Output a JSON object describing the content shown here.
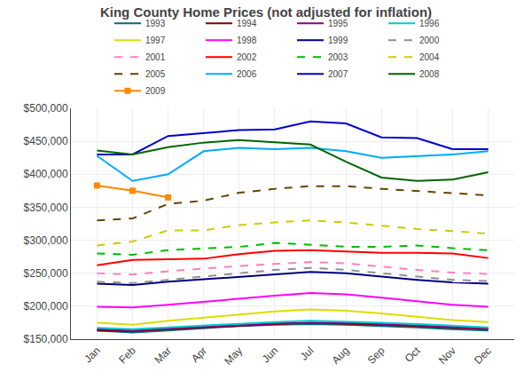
{
  "chart_data": {
    "type": "line",
    "title": "King County Home Prices (not adjusted for inflation)",
    "categories": [
      "Jan",
      "Feb",
      "Mar",
      "Apr",
      "May",
      "Jun",
      "Jul",
      "Aug",
      "Sep",
      "Oct",
      "Nov",
      "Dec"
    ],
    "series": [
      {
        "name": "1993",
        "color": "#007070",
        "line_style": "solid",
        "values": [
          163000,
          160000,
          163000,
          167000,
          170000,
          172000,
          173000,
          172000,
          170000,
          168000,
          165000,
          163000
        ]
      },
      {
        "name": "1994",
        "color": "#800000",
        "line_style": "solid",
        "values": [
          163000,
          162000,
          165000,
          168000,
          171000,
          173000,
          175000,
          174000,
          172000,
          170000,
          167000,
          165000
        ]
      },
      {
        "name": "1995",
        "color": "#880088",
        "line_style": "solid",
        "values": [
          165000,
          163000,
          166000,
          169000,
          172000,
          174000,
          175000,
          175000,
          173000,
          171000,
          168000,
          166000
        ]
      },
      {
        "name": "1996",
        "color": "#00cccc",
        "line_style": "solid",
        "values": [
          167000,
          165000,
          168000,
          171000,
          174000,
          176000,
          178000,
          177000,
          175000,
          173000,
          170000,
          168000
        ]
      },
      {
        "name": "1997",
        "color": "#dddd00",
        "line_style": "solid",
        "values": [
          175000,
          172000,
          178000,
          183000,
          188000,
          192000,
          195000,
          193000,
          189000,
          184000,
          179000,
          176000
        ]
      },
      {
        "name": "1998",
        "color": "#ff00ff",
        "line_style": "solid",
        "values": [
          199000,
          198000,
          202000,
          207000,
          212000,
          216000,
          220000,
          218000,
          213000,
          207000,
          202000,
          199000
        ]
      },
      {
        "name": "1999",
        "color": "#000080",
        "line_style": "solid",
        "values": [
          234000,
          232000,
          237000,
          241000,
          245000,
          249000,
          252000,
          250000,
          245000,
          240000,
          236000,
          234000
        ]
      },
      {
        "name": "2000",
        "color": "#909090",
        "line_style": "dashed",
        "values": [
          237000,
          235000,
          240000,
          245000,
          250000,
          255000,
          258000,
          255000,
          250000,
          245000,
          240000,
          238000
        ]
      },
      {
        "name": "2001",
        "color": "#ff80c0",
        "line_style": "dashed",
        "values": [
          250000,
          248000,
          253000,
          257000,
          261000,
          264000,
          267000,
          265000,
          260000,
          255000,
          251000,
          249000
        ]
      },
      {
        "name": "2002",
        "color": "#ff0000",
        "line_style": "solid",
        "values": [
          262000,
          270000,
          271000,
          272000,
          279000,
          284000,
          285000,
          283000,
          281000,
          281000,
          280000,
          273000
        ]
      },
      {
        "name": "2003",
        "color": "#00bb00",
        "line_style": "dashed",
        "values": [
          280000,
          278000,
          285000,
          287000,
          290000,
          296000,
          293000,
          290000,
          290000,
          292000,
          288000,
          285000
        ]
      },
      {
        "name": "2004",
        "color": "#cccc00",
        "line_style": "dashed",
        "values": [
          292000,
          298000,
          315000,
          315000,
          323000,
          327000,
          330000,
          327000,
          322000,
          317000,
          314000,
          310000
        ]
      },
      {
        "name": "2005",
        "color": "#664400",
        "line_style": "dashed",
        "values": [
          330000,
          333000,
          355000,
          360000,
          372000,
          378000,
          382000,
          382000,
          378000,
          375000,
          372000,
          368000
        ]
      },
      {
        "name": "2006",
        "color": "#00aaff",
        "line_style": "solid",
        "values": [
          428000,
          390000,
          400000,
          435000,
          440000,
          438000,
          440000,
          435000,
          425000,
          428000,
          430000,
          435000
        ]
      },
      {
        "name": "2007",
        "color": "#0000cc",
        "line_style": "solid",
        "values": [
          430000,
          430000,
          458000,
          463000,
          467000,
          468000,
          480000,
          477000,
          456000,
          455000,
          438000,
          438000
        ]
      },
      {
        "name": "2008",
        "color": "#006600",
        "line_style": "solid",
        "values": [
          436000,
          430000,
          441000,
          448000,
          452000,
          449000,
          445000,
          419000,
          395000,
          390000,
          392000,
          403000
        ]
      },
      {
        "name": "2009",
        "color": "#ff8800",
        "line_style": "solid",
        "marker": "square",
        "values": [
          383000,
          375000,
          365000,
          null,
          null,
          null,
          null,
          null,
          null,
          null,
          null,
          null
        ]
      }
    ],
    "ylim": [
      150000,
      500000
    ],
    "yticks": [
      {
        "value": 150000,
        "label": "$150,000"
      },
      {
        "value": 200000,
        "label": "$200,000"
      },
      {
        "value": 250000,
        "label": "$250,000"
      },
      {
        "value": 300000,
        "label": "$300,000"
      },
      {
        "value": 350000,
        "label": "$350,000"
      },
      {
        "value": 400000,
        "label": "$400,000"
      },
      {
        "value": 450000,
        "label": "$450,000"
      },
      {
        "value": 500000,
        "label": "$500,000"
      }
    ],
    "grid": true,
    "legend": "top"
  }
}
